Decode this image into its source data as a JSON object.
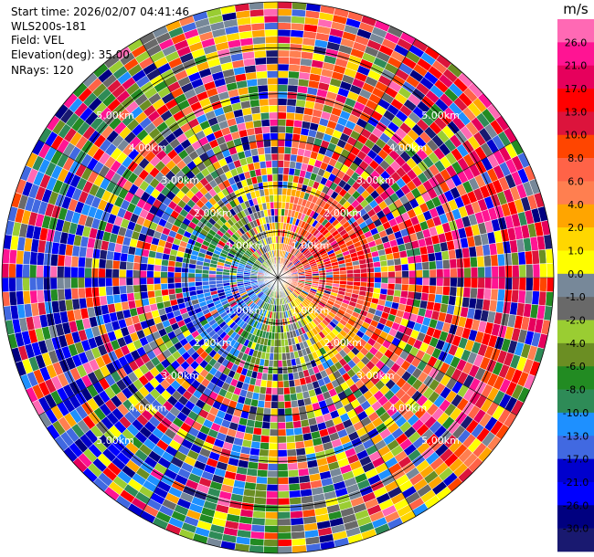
{
  "info": {
    "start_time": "Start time: 2026/02/07 04:41:46",
    "site": "WLS200s-181",
    "field": "Field: VEL",
    "elevation": "Elevation(deg): 35.00",
    "nrays": "NRays: 120"
  },
  "chart_data": {
    "type": "heatmap",
    "projection": "polar-ppi",
    "title": "",
    "field": "VEL",
    "units": "m/s",
    "n_rays": 120,
    "range_max_km": 6.0,
    "range_rings_km": [
      1.0,
      2.0,
      3.0,
      4.0,
      5.0,
      6.0
    ],
    "range_ring_labels": [
      "1.00km",
      "2.00km",
      "3.00km",
      "4.00km",
      "5.00km"
    ],
    "colorbar": {
      "label": "m/s",
      "tick_labels": [
        "26.0",
        "21.0",
        "17.0",
        "13.0",
        "10.0",
        "8.0",
        "6.0",
        "4.0",
        "2.0",
        "1.0",
        "0.0",
        "-1.0",
        "-2.0",
        "-4.0",
        "-6.0",
        "-8.0",
        "-10.0",
        "-13.0",
        "-17.0",
        "-21.0",
        "-26.0",
        "-30.0"
      ],
      "colors": [
        "#ff69b4",
        "#ff1493",
        "#e6005c",
        "#ff0000",
        "#dc143c",
        "#ff4500",
        "#ff6347",
        "#ff7f50",
        "#ffa500",
        "#ffd700",
        "#ffff00",
        "#778899",
        "#696969",
        "#9acd32",
        "#6b8e23",
        "#228b22",
        "#2e8b57",
        "#1e90ff",
        "#4169e1",
        "#0000cd",
        "#0000ff",
        "#000080",
        "#191970"
      ]
    },
    "pattern": "random velocity gates with positive (red/pink) sector toward the east-northeast, negative (green/blue) sector toward the west-southwest, strongest outbound values near the south-east edge"
  }
}
